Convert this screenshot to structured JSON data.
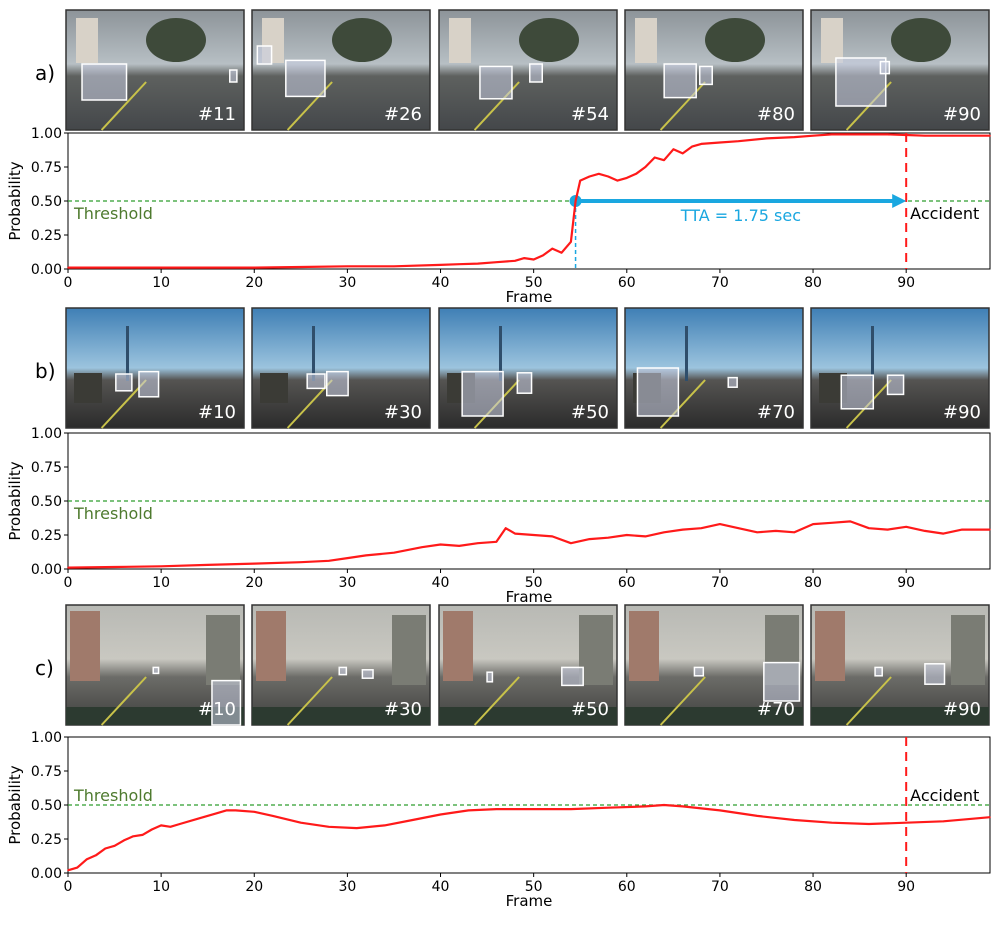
{
  "panels": [
    {
      "label": "a)",
      "frames": [
        "#11",
        "#26",
        "#54",
        "#80",
        "#90"
      ],
      "scene": "day",
      "threshold_label": "Threshold",
      "accident_label": "Accident",
      "tta_label": "TTA = 1.75 sec",
      "boxes": [
        [
          [
            0.09,
            0.45,
            0.25,
            0.3
          ],
          [
            0.92,
            0.5,
            0.04,
            0.1
          ]
        ],
        [
          [
            0.19,
            0.42,
            0.22,
            0.3
          ],
          [
            0.03,
            0.3,
            0.08,
            0.15
          ]
        ],
        [
          [
            0.23,
            0.47,
            0.18,
            0.27
          ],
          [
            0.51,
            0.45,
            0.07,
            0.15
          ]
        ],
        [
          [
            0.22,
            0.45,
            0.18,
            0.28
          ],
          [
            0.42,
            0.47,
            0.07,
            0.15
          ]
        ],
        [
          [
            0.14,
            0.4,
            0.28,
            0.4
          ],
          [
            0.39,
            0.43,
            0.05,
            0.1
          ]
        ]
      ]
    },
    {
      "label": "b)",
      "frames": [
        "#10",
        "#30",
        "#50",
        "#70",
        "#90"
      ],
      "scene": "sky",
      "threshold_label": "Threshold",
      "boxes": [
        [
          [
            0.28,
            0.55,
            0.09,
            0.14
          ],
          [
            0.41,
            0.53,
            0.11,
            0.21
          ]
        ],
        [
          [
            0.31,
            0.55,
            0.1,
            0.12
          ],
          [
            0.42,
            0.53,
            0.12,
            0.2
          ]
        ],
        [
          [
            0.13,
            0.53,
            0.23,
            0.37
          ],
          [
            0.44,
            0.54,
            0.08,
            0.17
          ]
        ],
        [
          [
            0.07,
            0.5,
            0.23,
            0.4
          ],
          [
            0.58,
            0.58,
            0.05,
            0.08
          ]
        ],
        [
          [
            0.17,
            0.56,
            0.18,
            0.28
          ],
          [
            0.43,
            0.56,
            0.09,
            0.16
          ]
        ]
      ]
    },
    {
      "label": "c)",
      "frames": [
        "#10",
        "#30",
        "#50",
        "#70",
        "#90"
      ],
      "scene": "street",
      "threshold_label": "Threshold",
      "accident_label": "Accident",
      "boxes": [
        [
          [
            0.82,
            0.63,
            0.16,
            0.37
          ],
          [
            0.49,
            0.52,
            0.03,
            0.05
          ]
        ],
        [
          [
            0.49,
            0.52,
            0.04,
            0.06
          ],
          [
            0.62,
            0.54,
            0.06,
            0.07
          ]
        ],
        [
          [
            0.69,
            0.52,
            0.12,
            0.15
          ],
          [
            0.27,
            0.56,
            0.03,
            0.08
          ]
        ],
        [
          [
            0.78,
            0.48,
            0.2,
            0.32
          ],
          [
            0.39,
            0.52,
            0.05,
            0.07
          ]
        ],
        [
          [
            0.64,
            0.49,
            0.11,
            0.17
          ],
          [
            0.36,
            0.52,
            0.04,
            0.07
          ]
        ]
      ]
    }
  ],
  "chart_data": [
    {
      "type": "line",
      "panel": "a)",
      "xlabel": "Frame",
      "ylabel": "Probability",
      "xlim": [
        0,
        99
      ],
      "ylim": [
        0,
        1.0
      ],
      "xticks": [
        0,
        10,
        20,
        30,
        40,
        50,
        60,
        70,
        80,
        90
      ],
      "yticks": [
        "0.00",
        "0.25",
        "0.50",
        "0.75",
        "1.00"
      ],
      "threshold": 0.5,
      "accident_frame": 90,
      "tta_start_frame": 54.5,
      "x": [
        0,
        5,
        10,
        15,
        20,
        25,
        30,
        35,
        40,
        42,
        44,
        46,
        48,
        49,
        50,
        51,
        52,
        53,
        54,
        54.5,
        55,
        56,
        57,
        58,
        59,
        60,
        61,
        62,
        63,
        64,
        65,
        66,
        67,
        68,
        70,
        72,
        75,
        78,
        80,
        82,
        85,
        88,
        90,
        92,
        95,
        99
      ],
      "values": [
        0.01,
        0.01,
        0.01,
        0.01,
        0.01,
        0.015,
        0.02,
        0.02,
        0.03,
        0.035,
        0.04,
        0.05,
        0.06,
        0.08,
        0.07,
        0.1,
        0.15,
        0.12,
        0.2,
        0.5,
        0.65,
        0.68,
        0.7,
        0.68,
        0.65,
        0.67,
        0.7,
        0.75,
        0.82,
        0.8,
        0.88,
        0.85,
        0.9,
        0.92,
        0.93,
        0.94,
        0.96,
        0.97,
        0.98,
        0.99,
        0.99,
        0.99,
        0.985,
        0.98,
        0.98,
        0.98
      ],
      "colors": {
        "line": "#ff1a1a",
        "threshold": "#2e9e2e",
        "tta": "#1aa7e0",
        "accident": "#ff1a1a"
      }
    },
    {
      "type": "line",
      "panel": "b)",
      "xlabel": "Frame",
      "ylabel": "Probability",
      "xlim": [
        0,
        99
      ],
      "ylim": [
        0,
        1.0
      ],
      "xticks": [
        0,
        10,
        20,
        30,
        40,
        50,
        60,
        70,
        80,
        90
      ],
      "yticks": [
        "0.00",
        "0.25",
        "0.50",
        "0.75",
        "1.00"
      ],
      "threshold": 0.5,
      "x": [
        0,
        5,
        10,
        15,
        20,
        25,
        28,
        30,
        32,
        35,
        38,
        40,
        42,
        44,
        46,
        47,
        48,
        50,
        52,
        54,
        56,
        58,
        60,
        62,
        64,
        66,
        68,
        70,
        72,
        74,
        76,
        78,
        80,
        82,
        84,
        86,
        88,
        90,
        92,
        94,
        96,
        99
      ],
      "values": [
        0.01,
        0.015,
        0.02,
        0.03,
        0.04,
        0.05,
        0.06,
        0.08,
        0.1,
        0.12,
        0.16,
        0.18,
        0.17,
        0.19,
        0.2,
        0.3,
        0.26,
        0.25,
        0.24,
        0.19,
        0.22,
        0.23,
        0.25,
        0.24,
        0.27,
        0.29,
        0.3,
        0.33,
        0.3,
        0.27,
        0.28,
        0.27,
        0.33,
        0.34,
        0.35,
        0.3,
        0.29,
        0.31,
        0.28,
        0.26,
        0.29,
        0.29
      ],
      "colors": {
        "line": "#ff1a1a",
        "threshold": "#2e9e2e"
      }
    },
    {
      "type": "line",
      "panel": "c)",
      "xlabel": "Frame",
      "ylabel": "Probability",
      "xlim": [
        0,
        99
      ],
      "ylim": [
        0,
        1.0
      ],
      "xticks": [
        0,
        10,
        20,
        30,
        40,
        50,
        60,
        70,
        80,
        90
      ],
      "yticks": [
        "0.00",
        "0.25",
        "0.50",
        "0.75",
        "1.00"
      ],
      "threshold": 0.5,
      "accident_frame": 90,
      "x": [
        0,
        1,
        2,
        3,
        4,
        5,
        6,
        7,
        8,
        9,
        10,
        11,
        12,
        14,
        16,
        17,
        18,
        20,
        22,
        25,
        28,
        31,
        34,
        37,
        40,
        43,
        46,
        50,
        54,
        58,
        62,
        64,
        66,
        70,
        74,
        78,
        82,
        86,
        90,
        94,
        99
      ],
      "values": [
        0.02,
        0.04,
        0.1,
        0.13,
        0.18,
        0.2,
        0.24,
        0.27,
        0.28,
        0.32,
        0.35,
        0.34,
        0.36,
        0.4,
        0.44,
        0.46,
        0.46,
        0.45,
        0.42,
        0.37,
        0.34,
        0.33,
        0.35,
        0.39,
        0.43,
        0.46,
        0.47,
        0.47,
        0.47,
        0.48,
        0.49,
        0.5,
        0.49,
        0.46,
        0.42,
        0.39,
        0.37,
        0.36,
        0.37,
        0.38,
        0.41
      ],
      "colors": {
        "line": "#ff1a1a",
        "threshold": "#2e9e2e",
        "accident": "#ff1a1a"
      }
    }
  ]
}
